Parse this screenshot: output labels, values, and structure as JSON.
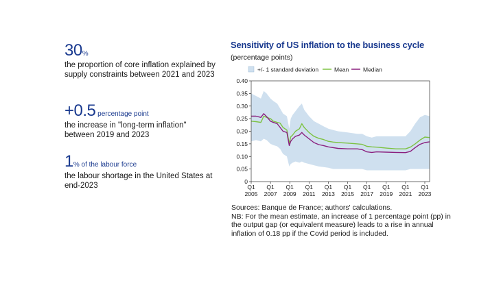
{
  "stats": [
    {
      "value": "30",
      "unit": "%",
      "description": "the proportion of core inflation explained by supply constraints between 2021 and 2023"
    },
    {
      "value": "+0.5",
      "unit": " percentage point",
      "description": "the increase in \"long-term inflation\" between 2019 and 2023"
    },
    {
      "value": "1",
      "unit": "% of the labour force",
      "description": "the labour shortage in the United States at end-2023"
    }
  ],
  "chart_data": {
    "type": "line",
    "title": "Sensitivity of US inflation to the business cycle",
    "subtitle": "(percentage points)",
    "legend": [
      "+/- 1 standard deviation",
      "Mean",
      "Median"
    ],
    "colors": {
      "band": "#cfe0ef",
      "mean": "#7dc242",
      "median": "#8a1f7e",
      "axis": "#333333"
    },
    "ylim": [
      0,
      0.4
    ],
    "yticks": [
      0,
      0.05,
      0.1,
      0.15,
      0.2,
      0.25,
      0.3,
      0.35,
      0.4
    ],
    "ytick_labels": [
      "0",
      "0.05",
      "0.10",
      "0.15",
      "0.20",
      "0.25",
      "0.30",
      "0.35",
      "0.40"
    ],
    "xlim": [
      2005,
      2023.5
    ],
    "xticks": [
      {
        "x": 2005,
        "q": "Q1",
        "year": "2005"
      },
      {
        "x": 2007,
        "q": "Q1",
        "year": "2007"
      },
      {
        "x": 2009,
        "q": "Q1",
        "year": "2009"
      },
      {
        "x": 2011,
        "q": "Q1",
        "year": "2011"
      },
      {
        "x": 2013,
        "q": "Q1",
        "year": "2013"
      },
      {
        "x": 2015,
        "q": "Q1",
        "year": "2015"
      },
      {
        "x": 2017,
        "q": "Q1",
        "year": "2017"
      },
      {
        "x": 2019,
        "q": "Q1",
        "year": "2019"
      },
      {
        "x": 2021,
        "q": "Q1",
        "year": "2021"
      },
      {
        "x": 2023,
        "q": "Q1",
        "year": "2023"
      }
    ],
    "x": [
      2005,
      2005.5,
      2006,
      2006.3,
      2006.6,
      2007,
      2007.3,
      2007.7,
      2008,
      2008.3,
      2008.7,
      2008.95,
      2009.1,
      2009.3,
      2009.6,
      2010,
      2010.25,
      2010.5,
      2011,
      2011.5,
      2012,
      2012.5,
      2013,
      2013.5,
      2014,
      2015,
      2016,
      2016.5,
      2017,
      2017.5,
      2018,
      2019,
      2020,
      2021,
      2021.5,
      2022,
      2022.5,
      2023,
      2023.5
    ],
    "series": [
      {
        "name": "Mean",
        "values": [
          0.24,
          0.238,
          0.235,
          0.26,
          0.255,
          0.25,
          0.24,
          0.235,
          0.232,
          0.215,
          0.205,
          0.15,
          0.178,
          0.185,
          0.2,
          0.21,
          0.23,
          0.215,
          0.195,
          0.18,
          0.172,
          0.167,
          0.16,
          0.157,
          0.155,
          0.153,
          0.15,
          0.148,
          0.14,
          0.138,
          0.137,
          0.133,
          0.13,
          0.13,
          0.137,
          0.15,
          0.165,
          0.177,
          0.175
        ]
      },
      {
        "name": "Median",
        "values": [
          0.26,
          0.26,
          0.255,
          0.27,
          0.258,
          0.24,
          0.235,
          0.23,
          0.215,
          0.2,
          0.195,
          0.143,
          0.16,
          0.17,
          0.18,
          0.185,
          0.195,
          0.185,
          0.17,
          0.155,
          0.147,
          0.143,
          0.138,
          0.135,
          0.132,
          0.13,
          0.13,
          0.127,
          0.118,
          0.116,
          0.118,
          0.117,
          0.116,
          0.115,
          0.12,
          0.135,
          0.148,
          0.155,
          0.158
        ]
      },
      {
        "name": "+/- 1 standard deviation upper",
        "values": [
          0.35,
          0.34,
          0.33,
          0.36,
          0.35,
          0.33,
          0.32,
          0.31,
          0.29,
          0.27,
          0.26,
          0.21,
          0.25,
          0.265,
          0.28,
          0.3,
          0.31,
          0.285,
          0.26,
          0.24,
          0.23,
          0.22,
          0.21,
          0.205,
          0.2,
          0.195,
          0.19,
          0.19,
          0.18,
          0.175,
          0.18,
          0.18,
          0.18,
          0.18,
          0.2,
          0.23,
          0.255,
          0.265,
          0.26
        ]
      },
      {
        "name": "+/- 1 standard deviation lower",
        "values": [
          0.16,
          0.165,
          0.16,
          0.17,
          0.165,
          0.15,
          0.145,
          0.14,
          0.13,
          0.11,
          0.1,
          0.06,
          0.07,
          0.075,
          0.08,
          0.075,
          0.08,
          0.075,
          0.07,
          0.065,
          0.06,
          0.058,
          0.055,
          0.05,
          0.05,
          0.05,
          0.05,
          0.05,
          0.045,
          0.045,
          0.045,
          0.045,
          0.045,
          0.045,
          0.05,
          0.05,
          0.05,
          0.05,
          0.05
        ]
      }
    ]
  },
  "notes": {
    "sources": "Sources: Banque de France; authors' calculations.",
    "nb": "NB: For the mean estimate, an increase of 1 percentage point (pp) in the output gap (or equivalent measure) leads to a rise in annual inflation of 0.18 pp if the Covid period is included."
  }
}
